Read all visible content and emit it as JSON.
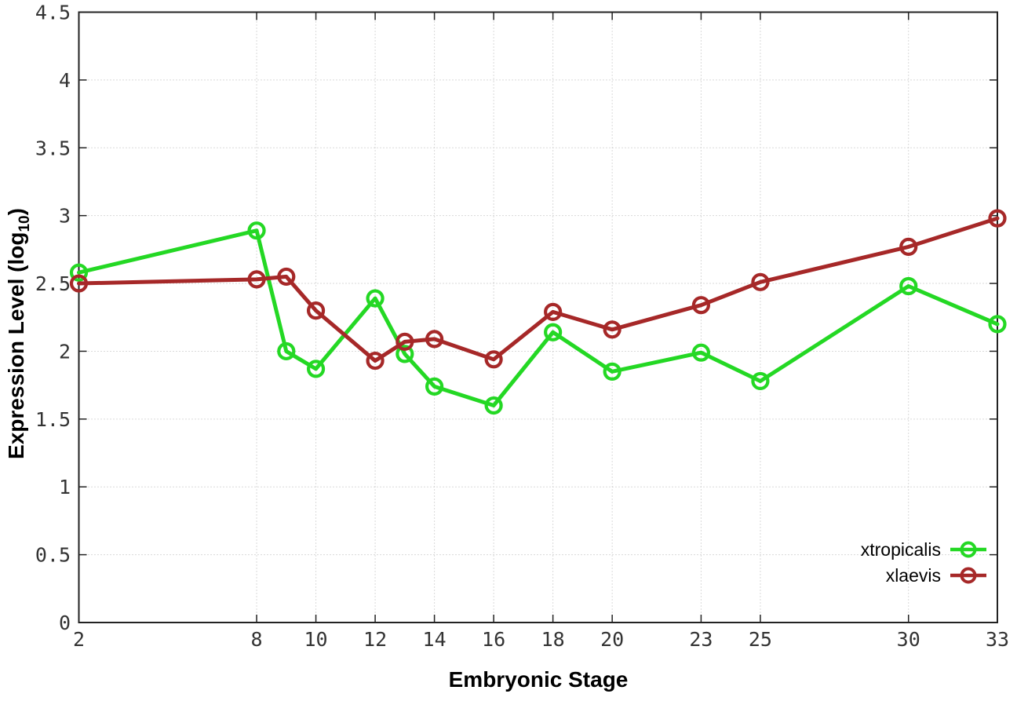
{
  "chart_data": {
    "type": "line",
    "title": "",
    "xlabel": "Embryonic Stage",
    "ylabel": "Expression Level (log10)",
    "ylabel_main": "Expression Level (log",
    "ylabel_sub": "10",
    "ylabel_close": ")",
    "xlim": [
      2,
      33
    ],
    "ylim": [
      0,
      4.5
    ],
    "xticks": [
      2,
      8,
      10,
      12,
      14,
      16,
      18,
      20,
      23,
      25,
      30,
      33
    ],
    "yticks": [
      0,
      0.5,
      1,
      1.5,
      2,
      2.5,
      3,
      3.5,
      4,
      4.5
    ],
    "grid": true,
    "grid_style": "dotted",
    "legend_position": "bottom-right-inside",
    "background_color": "#ffffff",
    "axis_color": "#222222",
    "tick_label_color": "#333333",
    "x": [
      2,
      8,
      9,
      10,
      12,
      13,
      14,
      16,
      18,
      20,
      23,
      25,
      30,
      33
    ],
    "series": [
      {
        "name": "xtropicalis",
        "color": "#24d824",
        "marker": "open-circle",
        "values": [
          2.58,
          2.89,
          2.0,
          1.87,
          2.39,
          1.98,
          1.74,
          1.6,
          2.14,
          1.85,
          1.99,
          1.78,
          2.48,
          2.2
        ]
      },
      {
        "name": "xlaevis",
        "color": "#a62828",
        "marker": "open-circle",
        "values": [
          2.5,
          2.53,
          2.55,
          2.3,
          1.93,
          2.07,
          2.09,
          1.94,
          2.29,
          2.16,
          2.34,
          2.51,
          2.77,
          2.98
        ]
      }
    ]
  }
}
